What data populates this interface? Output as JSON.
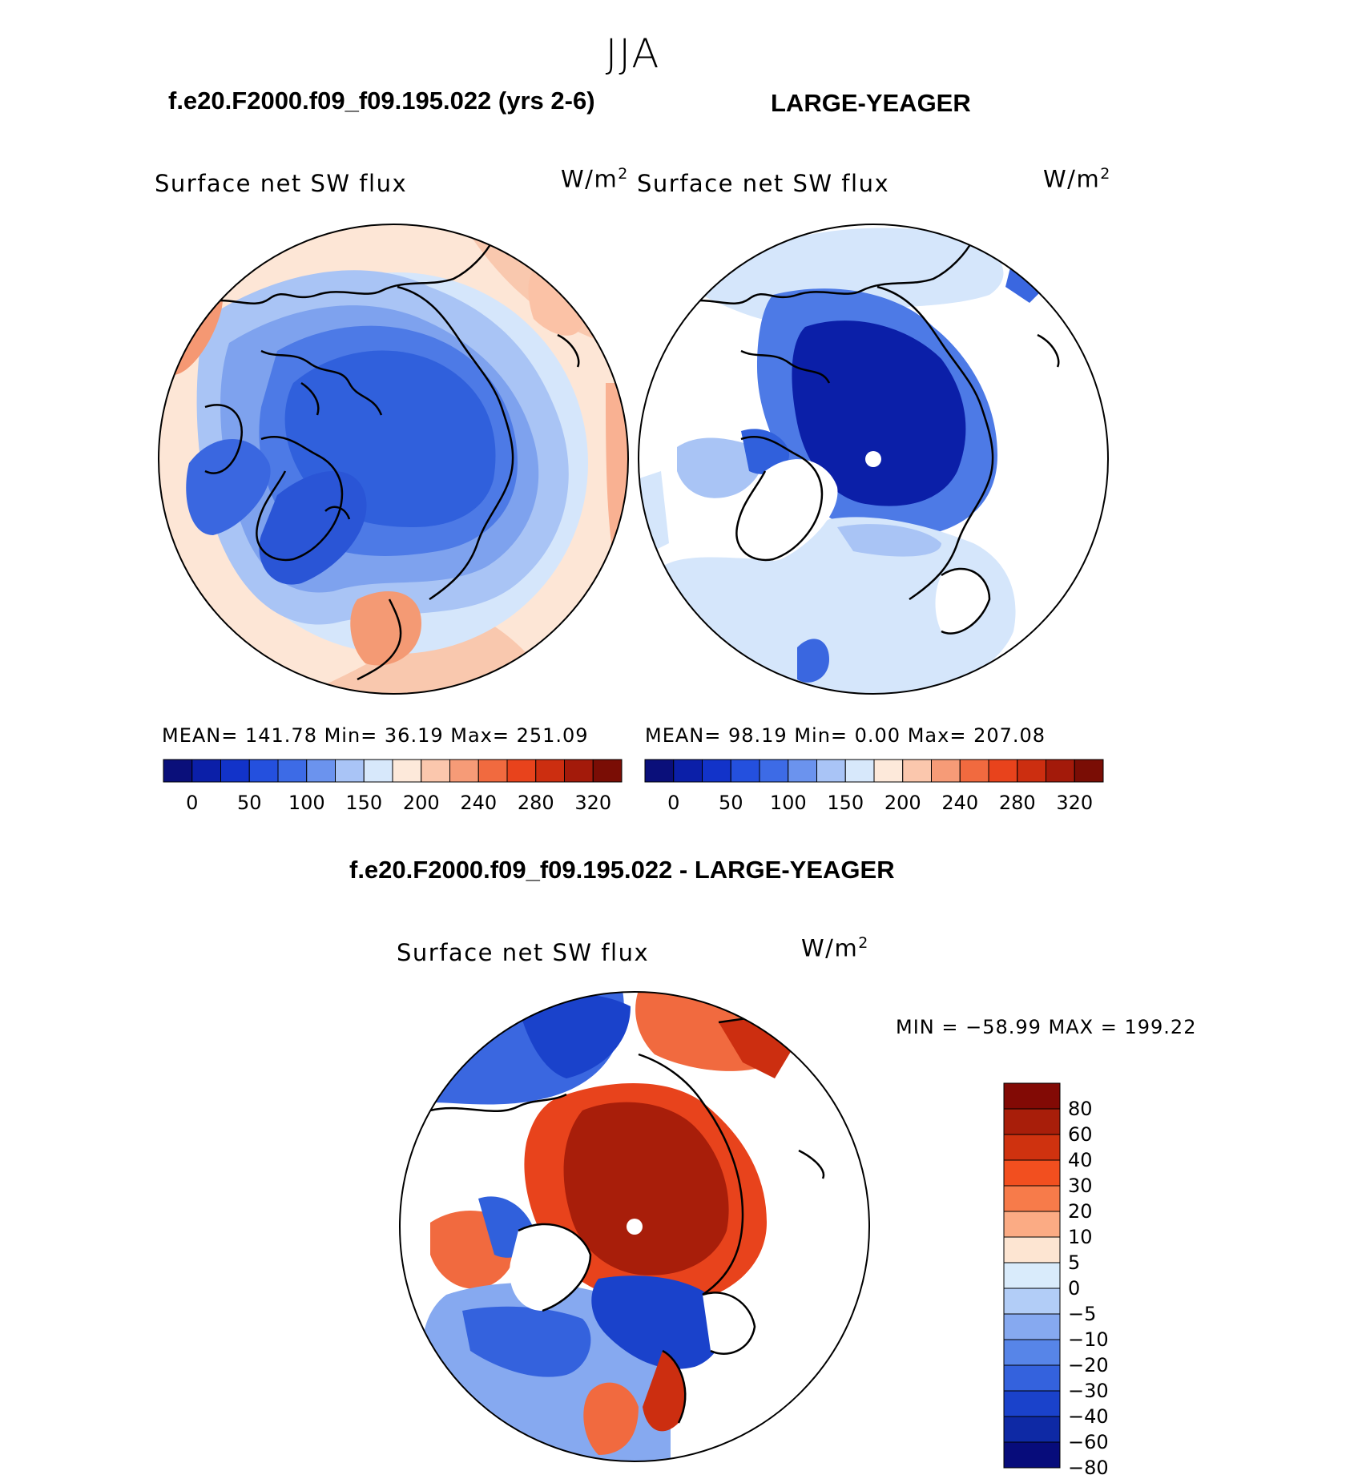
{
  "season": "JJA",
  "panel_left": {
    "case_title": "f.e20.F2000.f09_f09.195.022 (yrs 2-6)",
    "variable": "Surface net SW flux",
    "units_base": "W/m",
    "units_exp": "2",
    "stats": "MEAN=  141.78   Min=    36.19   Max=  251.09"
  },
  "panel_right": {
    "case_title": "LARGE-YEAGER",
    "variable": "Surface net SW flux",
    "units_base": "W/m",
    "units_exp": "2",
    "stats": "MEAN=    98.19   Min=      0.00   Max=  207.08"
  },
  "panel_diff": {
    "case_title": "f.e20.F2000.f09_f09.195.022 - LARGE-YEAGER",
    "variable": "Surface net SW flux",
    "units_base": "W/m",
    "units_exp": "2",
    "stats": "MIN  =  −58.99  MAX  =  199.22"
  },
  "colorbar_main": {
    "ticks": [
      "0",
      "50",
      "100",
      "150",
      "200",
      "240",
      "280",
      "320"
    ],
    "colors": [
      "#0a0f7a",
      "#0b1fa8",
      "#1233c9",
      "#2450de",
      "#3d6be6",
      "#6b93ee",
      "#a9c4f6",
      "#d7e8fb",
      "#fde9da",
      "#fbc7ad",
      "#f69b77",
      "#f16a3f",
      "#e8431c",
      "#cc2e10",
      "#a31a0a",
      "#7a0d05"
    ]
  },
  "colorbar_diff": {
    "ticks": [
      "80",
      "60",
      "40",
      "30",
      "20",
      "10",
      "5",
      "0",
      "−5",
      "−10",
      "−20",
      "−30",
      "−40",
      "−60",
      "−80"
    ],
    "colors": [
      "#820a05",
      "#a81e0a",
      "#cf320f",
      "#f24f1f",
      "#f77b4a",
      "#fbab84",
      "#fde5d2",
      "#d9ebfb",
      "#b2cdf7",
      "#86a9f0",
      "#5785e8",
      "#3462dd",
      "#1a42cb",
      "#0e29a5",
      "#070c7b"
    ]
  }
}
